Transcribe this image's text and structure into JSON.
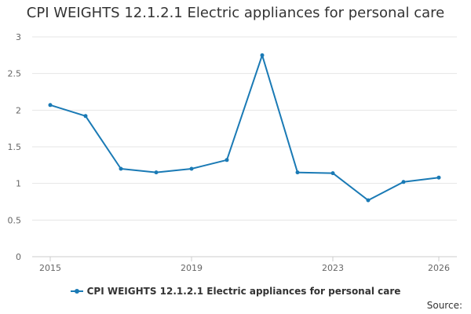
{
  "chart_data": {
    "type": "line",
    "title": "CPI WEIGHTS 12.1.2.1 Electric appliances for personal care",
    "xlabel": "",
    "ylabel": "",
    "x": [
      2015,
      2016,
      2017,
      2018,
      2019,
      2020,
      2021,
      2022,
      2023,
      2024,
      2025,
      2026
    ],
    "x_tick_labels": [
      "2015",
      "2019",
      "2023",
      "2026"
    ],
    "y_ticks": [
      "0",
      "0.5",
      "1",
      "1.5",
      "2",
      "2.5",
      "3"
    ],
    "ylim": [
      0,
      3
    ],
    "grid": true,
    "legend_position": "bottom-center",
    "series": [
      {
        "name": "CPI WEIGHTS 12.1.2.1 Electric appliances for personal care",
        "color": "#1a7ab5",
        "values": [
          2.07,
          1.92,
          1.2,
          1.15,
          1.2,
          1.32,
          2.75,
          1.15,
          1.14,
          0.77,
          1.02,
          1.08
        ]
      }
    ]
  },
  "source_label": "Source:"
}
